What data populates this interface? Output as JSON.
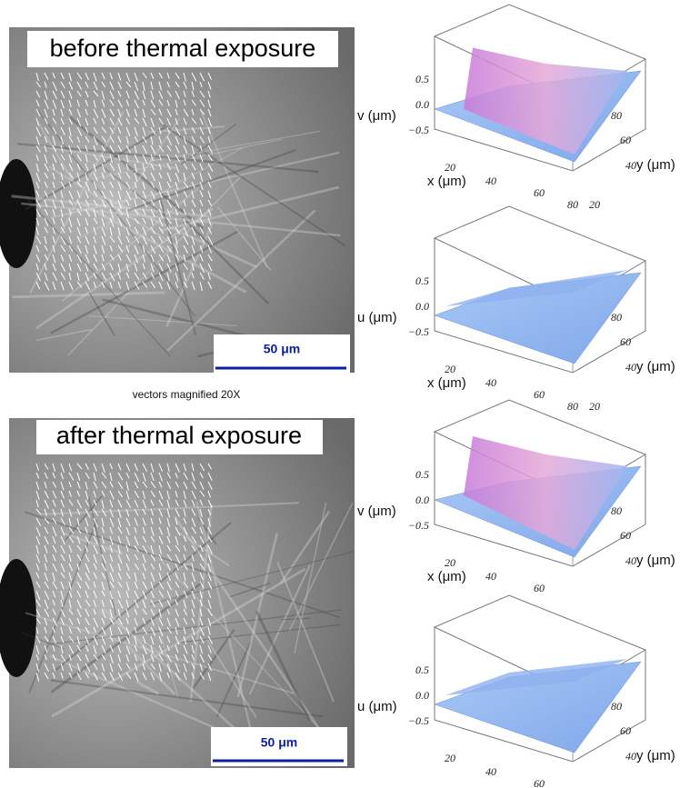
{
  "panels": [
    {
      "title": "before thermal exposure",
      "scale_bar": "50 μm"
    },
    {
      "title": "after thermal exposure",
      "scale_bar": "50 μm"
    }
  ],
  "caption": "vectors magnified 20X",
  "plots": [
    {
      "z_label": "v (μm)",
      "x_label": "x (μm)",
      "y_label": "y (μm)",
      "z_ticks": [
        "0.5",
        "0.0",
        "−0.5"
      ],
      "x_ticks": [
        "20",
        "40",
        "60",
        "80"
      ],
      "y_ticks": [
        "20",
        "40",
        "60",
        "80"
      ]
    },
    {
      "z_label": "u (μm)",
      "x_label": "x (μm)",
      "y_label": "y (μm)",
      "z_ticks": [
        "0.5",
        "0.0",
        "−0.5"
      ],
      "x_ticks": [
        "20",
        "40",
        "60",
        "80"
      ],
      "y_ticks": [
        "20",
        "40",
        "60",
        "80"
      ]
    },
    {
      "z_label": "v (μm)",
      "x_label": "x (μm)",
      "y_label": "y (μm)",
      "z_ticks": [
        "0.5",
        "0.0",
        "−0.5"
      ],
      "x_ticks": [
        "20",
        "40",
        "60"
      ],
      "y_ticks": [
        "40",
        "60",
        "80"
      ]
    },
    {
      "z_label": "u (μm)",
      "y_label": "y (μm)",
      "z_ticks": [
        "0.5",
        "0.0",
        "−0.5"
      ],
      "x_ticks": [
        "20",
        "40",
        "60"
      ],
      "y_ticks": [
        "40",
        "60",
        "80"
      ]
    }
  ]
}
